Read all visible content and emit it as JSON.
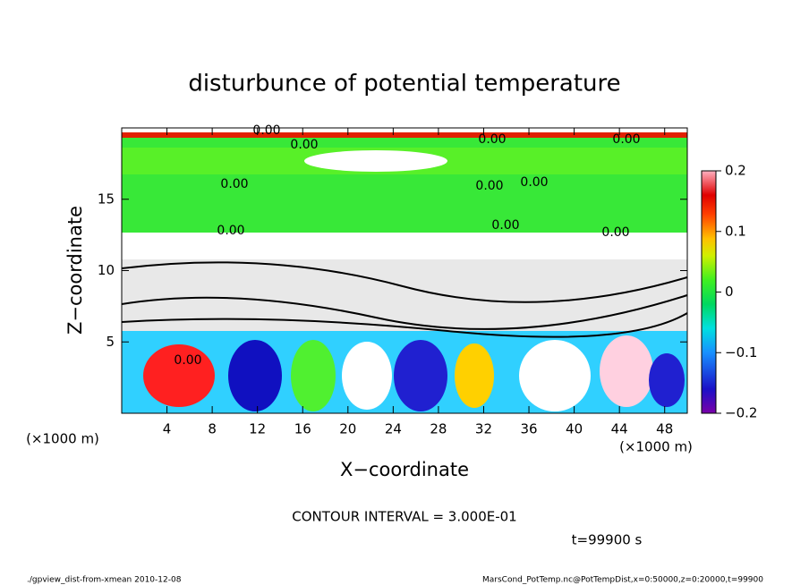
{
  "chart_data": {
    "type": "heatmap",
    "title": "disturbunce of potential temperature",
    "xlabel": "X−coordinate",
    "ylabel": "Z−coordinate",
    "x_unit": "(×1000 m)",
    "x_unit_right": "(×1000 m)",
    "xlim": [
      0,
      50
    ],
    "xticks": [
      4,
      8,
      12,
      16,
      20,
      24,
      28,
      32,
      36,
      40,
      44,
      48
    ],
    "ylim": [
      0,
      20
    ],
    "yticks": [
      5,
      10,
      15
    ],
    "clim": [
      -0.2,
      0.2
    ],
    "cticks": [
      {
        "value": -0.2,
        "label": "−0.2"
      },
      {
        "value": -0.1,
        "label": "−0.1"
      },
      0,
      0.1,
      0.2
    ],
    "contour_labels": [
      "0.00",
      "0.00",
      "0.00",
      "0.00",
      "0.00",
      "0.00",
      "0.00",
      "0.00",
      "0.00",
      "0.00",
      "0.00"
    ],
    "contour_interval": "CONTOUR INTERVAL = 3.000E-01",
    "time": "t=99900 s",
    "footer_left": "./gpview_dist-from-xmean   2010-12-08",
    "footer_right": "MarsCond_PotTemp.nc@PotTempDist,x=0:50000,z=0:20000,t=99900"
  }
}
